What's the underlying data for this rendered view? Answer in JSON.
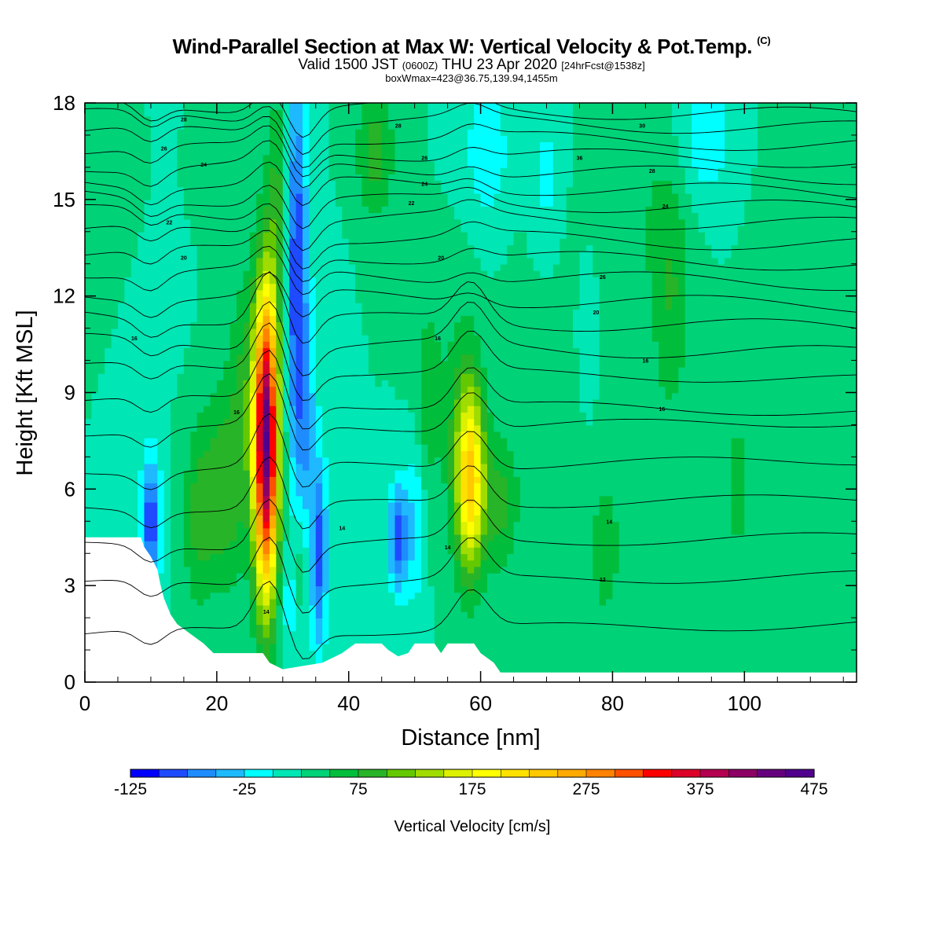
{
  "title": {
    "main": "Wind-Parallel Section at Max W: Vertical Velocity & Pot.Temp.",
    "copyright": "(C)",
    "valid_a": "Valid 1500 JST",
    "valid_z": "(0600Z)",
    "valid_b": "THU 23 Apr 2020",
    "forecast": "[24hrFcst@1538z]",
    "box": "boxWmax=423@36.75,139.94,1455m"
  },
  "chart_data": {
    "type": "heatmap",
    "xlabel": "Distance [nm]",
    "ylabel": "Height [Kft MSL]",
    "xlim": [
      0,
      117
    ],
    "ylim": [
      0,
      18
    ],
    "xticks": [
      0,
      20,
      40,
      60,
      80,
      100
    ],
    "yticks": [
      0,
      3,
      6,
      9,
      12,
      15,
      18
    ],
    "colorbar": {
      "label": "Vertical Velocity [cm/s]",
      "ticks": [
        "-125",
        "-25",
        "75",
        "175",
        "275",
        "375",
        "475"
      ],
      "range": [
        -125,
        475
      ],
      "step": 25,
      "colors": [
        "#0000ff",
        "#1e4bff",
        "#1e8cff",
        "#1eb9ff",
        "#00ffff",
        "#00e6b4",
        "#00d278",
        "#00be3c",
        "#28b428",
        "#64c800",
        "#a0dc00",
        "#dcf000",
        "#ffff00",
        "#ffe100",
        "#ffc800",
        "#ffaa00",
        "#ff8200",
        "#ff5000",
        "#ff0000",
        "#dc0028",
        "#b40050",
        "#8c0064",
        "#64007d",
        "#50008c"
      ]
    },
    "features": [
      {
        "kind": "updraft",
        "x": 27.5,
        "y": 7.5,
        "sx": 1.3,
        "sy": 3.3,
        "w": 423
      },
      {
        "kind": "updraft",
        "x": 58.5,
        "y": 6.3,
        "sx": 1.5,
        "sy": 2.0,
        "w": 190
      },
      {
        "kind": "downdraft",
        "x": 32,
        "y": 13,
        "sx": 1.2,
        "sy": 4.5,
        "w": -125
      },
      {
        "kind": "downdraft",
        "x": 10,
        "y": 5,
        "sx": 1.1,
        "sy": 1.5,
        "w": -120
      },
      {
        "kind": "downdraft",
        "x": 47.5,
        "y": 4.5,
        "sx": 1.0,
        "sy": 1.2,
        "w": -120
      }
    ],
    "theta_contours": {
      "interval_label": "pot.temp",
      "labels": [
        {
          "text": "16",
          "x": 7.5,
          "y": 10.7
        },
        {
          "text": "16",
          "x": 23,
          "y": 8.4
        },
        {
          "text": "16",
          "x": 53.5,
          "y": 10.7
        },
        {
          "text": "16",
          "x": 87.5,
          "y": 8.5
        },
        {
          "text": "16",
          "x": 85,
          "y": 10.0
        },
        {
          "text": "14",
          "x": 39,
          "y": 4.8
        },
        {
          "text": "14",
          "x": 55,
          "y": 4.2
        },
        {
          "text": "14",
          "x": 79.5,
          "y": 5.0
        },
        {
          "text": "14",
          "x": 27.5,
          "y": 2.2
        },
        {
          "text": "12",
          "x": 78.5,
          "y": 3.2
        },
        {
          "text": "20",
          "x": 77.5,
          "y": 11.5
        },
        {
          "text": "20",
          "x": 54,
          "y": 13.2
        },
        {
          "text": "20",
          "x": 15,
          "y": 13.2
        },
        {
          "text": "22",
          "x": 12.8,
          "y": 14.3
        },
        {
          "text": "22",
          "x": 49.5,
          "y": 14.9
        },
        {
          "text": "24",
          "x": 18,
          "y": 16.1
        },
        {
          "text": "24",
          "x": 51.5,
          "y": 15.5
        },
        {
          "text": "24",
          "x": 88,
          "y": 14.8
        },
        {
          "text": "26",
          "x": 12,
          "y": 16.6
        },
        {
          "text": "26",
          "x": 51.5,
          "y": 16.3
        },
        {
          "text": "26",
          "x": 78.5,
          "y": 12.6
        },
        {
          "text": "28",
          "x": 15,
          "y": 17.5
        },
        {
          "text": "28",
          "x": 47.5,
          "y": 17.3
        },
        {
          "text": "28",
          "x": 86,
          "y": 15.9
        },
        {
          "text": "36",
          "x": 75,
          "y": 16.3
        },
        {
          "text": "30",
          "x": 84.5,
          "y": 17.3
        }
      ]
    }
  }
}
